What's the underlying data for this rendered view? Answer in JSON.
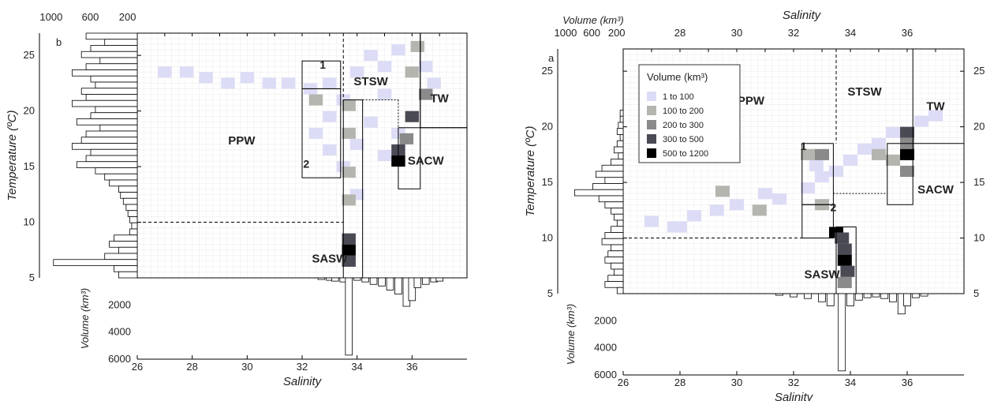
{
  "chart_data": [
    {
      "panel_label": "b",
      "type": "heatmap",
      "xlabel": "Salinity",
      "ylabel": "Temperature (ºC)",
      "hist_x_label": "Volume (km³)",
      "xlim": [
        26,
        38
      ],
      "ylim": [
        5,
        27
      ],
      "x_ticks": [
        "26",
        "28",
        "30",
        "32",
        "34",
        "36"
      ],
      "y_ticks": [
        "5",
        "10",
        "15",
        "20",
        "25"
      ],
      "hist_x_ticks": [
        "2000",
        "4000",
        "6000"
      ],
      "hist_y_ticks": [
        "1000",
        "600",
        "200"
      ],
      "water_masses": [
        {
          "label": "PPW",
          "x": 29.8,
          "y": 17.0
        },
        {
          "label": "STSW",
          "x": 34.5,
          "y": 22.3
        },
        {
          "label": "TW",
          "x": 37.0,
          "y": 20.8
        },
        {
          "label": "SACW",
          "x": 36.5,
          "y": 15.2
        },
        {
          "label": "SASW",
          "x": 33.0,
          "y": 6.4
        }
      ],
      "box_markers": [
        {
          "label": "1",
          "x": 32.75,
          "y": 23.8
        },
        {
          "label": "2",
          "x": 32.15,
          "y": 14.9
        }
      ],
      "cells": [
        {
          "s": 27.0,
          "t": 23.5,
          "v": 50
        },
        {
          "s": 27.8,
          "t": 23.5,
          "v": 50
        },
        {
          "s": 28.5,
          "t": 23.0,
          "v": 50
        },
        {
          "s": 29.3,
          "t": 22.5,
          "v": 50
        },
        {
          "s": 30.0,
          "t": 23.0,
          "v": 50
        },
        {
          "s": 30.8,
          "t": 22.5,
          "v": 50
        },
        {
          "s": 31.5,
          "t": 22.5,
          "v": 50
        },
        {
          "s": 32.3,
          "t": 22.0,
          "v": 50
        },
        {
          "s": 33.0,
          "t": 22.5,
          "v": 50
        },
        {
          "s": 33.5,
          "t": 21.0,
          "v": 50
        },
        {
          "s": 33.0,
          "t": 19.5,
          "v": 50
        },
        {
          "s": 32.5,
          "t": 18.0,
          "v": 50
        },
        {
          "s": 33.0,
          "t": 16.5,
          "v": 50
        },
        {
          "s": 33.5,
          "t": 15.0,
          "v": 50
        },
        {
          "s": 34.0,
          "t": 17.0,
          "v": 50
        },
        {
          "s": 34.5,
          "t": 19.0,
          "v": 50
        },
        {
          "s": 35.0,
          "t": 21.5,
          "v": 50
        },
        {
          "s": 35.0,
          "t": 24.0,
          "v": 50
        },
        {
          "s": 35.5,
          "t": 25.5,
          "v": 50
        },
        {
          "s": 34.5,
          "t": 25.0,
          "v": 50
        },
        {
          "s": 34.0,
          "t": 23.5,
          "v": 50
        },
        {
          "s": 36.5,
          "t": 24.0,
          "v": 50
        },
        {
          "s": 36.8,
          "t": 22.5,
          "v": 50
        },
        {
          "s": 35.5,
          "t": 18.0,
          "v": 50
        },
        {
          "s": 35.0,
          "t": 16.0,
          "v": 50
        },
        {
          "s": 34.0,
          "t": 12.5,
          "v": 50
        },
        {
          "s": 36.2,
          "t": 25.8,
          "v": 150
        },
        {
          "s": 36.0,
          "t": 23.5,
          "v": 150
        },
        {
          "s": 36.5,
          "t": 21.5,
          "v": 250
        },
        {
          "s": 36.0,
          "t": 19.5,
          "v": 400
        },
        {
          "s": 35.8,
          "t": 17.5,
          "v": 250
        },
        {
          "s": 35.5,
          "t": 16.5,
          "v": 400
        },
        {
          "s": 35.5,
          "t": 15.5,
          "v": 800
        },
        {
          "s": 33.7,
          "t": 20.5,
          "v": 150
        },
        {
          "s": 33.7,
          "t": 18.0,
          "v": 150
        },
        {
          "s": 33.7,
          "t": 14.5,
          "v": 150
        },
        {
          "s": 33.7,
          "t": 12.0,
          "v": 150
        },
        {
          "s": 33.7,
          "t": 8.5,
          "v": 400
        },
        {
          "s": 33.7,
          "t": 7.5,
          "v": 800
        },
        {
          "s": 33.7,
          "t": 6.5,
          "v": 400
        },
        {
          "s": 32.5,
          "t": 21.0,
          "v": 150
        }
      ]
    },
    {
      "panel_label": "a",
      "type": "heatmap",
      "xlabel": "Salinity",
      "ylabel": "Temperature (ºC)",
      "hist_x_label": "Volume (km³)",
      "hist_top_label": "Volume (km³)",
      "xlim": [
        26,
        38
      ],
      "ylim": [
        5,
        27
      ],
      "x_ticks": [
        "26",
        "28",
        "30",
        "32",
        "34",
        "36"
      ],
      "y_ticks": [
        "5",
        "10",
        "15",
        "20",
        "25"
      ],
      "hist_x_ticks": [
        "2000",
        "4000",
        "6000"
      ],
      "hist_y_ticks": [
        "1000",
        "600",
        "200"
      ],
      "legend_title": "Volume (km³)",
      "legend": [
        {
          "label": "1  to  100",
          "color": "#dcdcf6"
        },
        {
          "label": "100  to  200",
          "color": "#b5b5b0"
        },
        {
          "label": "200  to  300",
          "color": "#8a8a8a"
        },
        {
          "label": "300  to  500",
          "color": "#4a4a55"
        },
        {
          "label": "500  to  1200",
          "color": "#000000"
        }
      ],
      "water_masses": [
        {
          "label": "PPW",
          "x": 30.5,
          "y": 22.0
        },
        {
          "label": "STSW",
          "x": 34.5,
          "y": 22.8
        },
        {
          "label": "TW",
          "x": 37.0,
          "y": 21.5
        },
        {
          "label": "SACW",
          "x": 37.0,
          "y": 14.0
        },
        {
          "label": "SASW",
          "x": 33.0,
          "y": 6.4
        }
      ],
      "box_markers": [
        {
          "label": "1",
          "x": 32.35,
          "y": 17.9
        },
        {
          "label": "2",
          "x": 33.4,
          "y": 12.4
        }
      ],
      "cells": [
        {
          "s": 27.0,
          "t": 11.5,
          "v": 50
        },
        {
          "s": 27.8,
          "t": 11.0,
          "v": 50
        },
        {
          "s": 28.5,
          "t": 12.0,
          "v": 50
        },
        {
          "s": 29.3,
          "t": 12.5,
          "v": 50
        },
        {
          "s": 30.0,
          "t": 13.0,
          "v": 50
        },
        {
          "s": 30.8,
          "t": 12.5,
          "v": 50
        },
        {
          "s": 31.5,
          "t": 13.5,
          "v": 50
        },
        {
          "s": 32.5,
          "t": 14.5,
          "v": 50
        },
        {
          "s": 33.0,
          "t": 15.5,
          "v": 50
        },
        {
          "s": 33.5,
          "t": 16.0,
          "v": 50
        },
        {
          "s": 34.0,
          "t": 17.0,
          "v": 50
        },
        {
          "s": 34.5,
          "t": 18.0,
          "v": 50
        },
        {
          "s": 35.0,
          "t": 18.5,
          "v": 50
        },
        {
          "s": 35.5,
          "t": 19.5,
          "v": 50
        },
        {
          "s": 36.5,
          "t": 20.5,
          "v": 50
        },
        {
          "s": 37.0,
          "t": 21.0,
          "v": 50
        },
        {
          "s": 32.8,
          "t": 16.5,
          "v": 50
        },
        {
          "s": 31.0,
          "t": 14.0,
          "v": 50
        },
        {
          "s": 28.0,
          "t": 11.0,
          "v": 50
        },
        {
          "s": 29.5,
          "t": 14.2,
          "v": 150
        },
        {
          "s": 30.8,
          "t": 12.5,
          "v": 150
        },
        {
          "s": 32.5,
          "t": 17.5,
          "v": 150
        },
        {
          "s": 33.0,
          "t": 17.5,
          "v": 250
        },
        {
          "s": 35.0,
          "t": 17.5,
          "v": 150
        },
        {
          "s": 35.5,
          "t": 17.0,
          "v": 150
        },
        {
          "s": 36.0,
          "t": 19.5,
          "v": 400
        },
        {
          "s": 36.0,
          "t": 18.5,
          "v": 250
        },
        {
          "s": 36.0,
          "t": 17.5,
          "v": 800
        },
        {
          "s": 36.0,
          "t": 16.0,
          "v": 250
        },
        {
          "s": 33.5,
          "t": 10.5,
          "v": 800
        },
        {
          "s": 33.7,
          "t": 10.0,
          "v": 400
        },
        {
          "s": 33.8,
          "t": 9.0,
          "v": 400
        },
        {
          "s": 33.8,
          "t": 8.0,
          "v": 800
        },
        {
          "s": 33.9,
          "t": 7.0,
          "v": 400
        },
        {
          "s": 33.8,
          "t": 6.0,
          "v": 250
        },
        {
          "s": 33.0,
          "t": 13.0,
          "v": 150
        }
      ]
    }
  ]
}
